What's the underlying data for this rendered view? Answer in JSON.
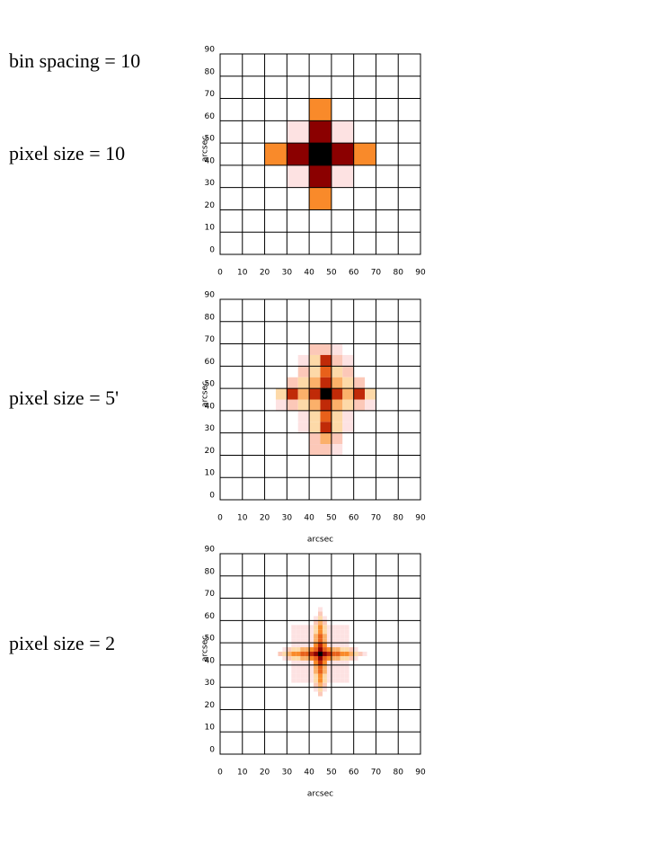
{
  "labels": [
    "bin spacing = 10",
    "pixel size = 10",
    "pixel size = 5'",
    "pixel size = 2"
  ],
  "colormap": [
    "#ffffff",
    "#fde2e2",
    "#fcc8b8",
    "#fdd9a8",
    "#fbb06a",
    "#f98a2a",
    "#e8601a",
    "#c02a08",
    "#8b0000",
    "#000000"
  ],
  "chart_data": [
    {
      "type": "heatmap",
      "ylabel": "arcsec",
      "x": [
        20,
        30,
        40,
        50,
        60
      ],
      "y": [
        60,
        50,
        40,
        30,
        20
      ],
      "values": [
        [
          0,
          0,
          5,
          0,
          0
        ],
        [
          0,
          1,
          8,
          1,
          0
        ],
        [
          5,
          8,
          9,
          8,
          5
        ],
        [
          0,
          1,
          8,
          1,
          0
        ],
        [
          0,
          0,
          5,
          0,
          0
        ]
      ],
      "xlim": [
        0,
        90
      ],
      "ylim": [
        0,
        90
      ],
      "xticks": [
        0,
        10,
        20,
        30,
        40,
        50,
        60,
        70,
        80,
        90
      ],
      "yticks": [
        0,
        10,
        20,
        30,
        40,
        50,
        60,
        70,
        80,
        90
      ],
      "grid": true
    },
    {
      "type": "heatmap",
      "ylabel": "arcsec",
      "xlabel": "arcsec",
      "x": [
        25,
        30,
        35,
        40,
        45,
        50,
        55,
        60,
        65
      ],
      "y": [
        65,
        60,
        55,
        50,
        45,
        40,
        35,
        30,
        25,
        20
      ],
      "values": [
        [
          0,
          0,
          0,
          2,
          2,
          1,
          0,
          0,
          0
        ],
        [
          0,
          0,
          1,
          3,
          7,
          2,
          1,
          0,
          0
        ],
        [
          0,
          0,
          2,
          3,
          6,
          3,
          2,
          0,
          0
        ],
        [
          0,
          2,
          3,
          4,
          7,
          4,
          3,
          2,
          0
        ],
        [
          3,
          7,
          4,
          7,
          9,
          7,
          4,
          7,
          3
        ],
        [
          1,
          2,
          3,
          4,
          7,
          4,
          3,
          2,
          1
        ],
        [
          0,
          0,
          1,
          3,
          6,
          3,
          1,
          0,
          0
        ],
        [
          0,
          0,
          1,
          3,
          7,
          3,
          1,
          0,
          0
        ],
        [
          0,
          0,
          0,
          2,
          4,
          2,
          0,
          0,
          0
        ],
        [
          0,
          0,
          0,
          2,
          2,
          1,
          0,
          0,
          0
        ]
      ],
      "xlim": [
        0,
        90
      ],
      "ylim": [
        0,
        90
      ],
      "xticks": [
        0,
        10,
        20,
        30,
        40,
        50,
        60,
        70,
        80,
        90
      ],
      "yticks": [
        0,
        10,
        20,
        30,
        40,
        50,
        60,
        70,
        80,
        90
      ],
      "grid": true
    },
    {
      "type": "heatmap",
      "ylabel": "arcsec",
      "xlabel": "arcsec",
      "x": [
        26,
        28,
        30,
        32,
        34,
        36,
        38,
        40,
        42,
        44,
        46,
        48,
        50,
        52,
        54,
        56,
        58,
        60,
        62,
        64
      ],
      "y": [
        64,
        62,
        60,
        58,
        56,
        54,
        52,
        50,
        48,
        46,
        44,
        42,
        40,
        38,
        36,
        34,
        32,
        30,
        28,
        26
      ],
      "values": [
        [
          0,
          0,
          0,
          0,
          0,
          0,
          0,
          0,
          0,
          1,
          0,
          0,
          0,
          0,
          0,
          0,
          0,
          0,
          0,
          0
        ],
        [
          0,
          0,
          0,
          0,
          0,
          0,
          0,
          0,
          0,
          2,
          0,
          0,
          0,
          0,
          0,
          0,
          0,
          0,
          0,
          0
        ],
        [
          0,
          0,
          0,
          0,
          0,
          0,
          0,
          0,
          1,
          3,
          1,
          0,
          0,
          0,
          0,
          0,
          0,
          0,
          0,
          0
        ],
        [
          0,
          0,
          0,
          0,
          0,
          0,
          0,
          0,
          2,
          4,
          2,
          0,
          0,
          0,
          0,
          0,
          0,
          0,
          0,
          0
        ],
        [
          0,
          0,
          0,
          1,
          1,
          1,
          1,
          1,
          3,
          5,
          3,
          1,
          1,
          1,
          1,
          1,
          0,
          0,
          0,
          0
        ],
        [
          0,
          0,
          0,
          1,
          1,
          1,
          1,
          1,
          3,
          5,
          3,
          1,
          1,
          1,
          1,
          1,
          0,
          0,
          0,
          0
        ],
        [
          0,
          0,
          0,
          1,
          1,
          1,
          1,
          1,
          4,
          6,
          4,
          1,
          1,
          1,
          1,
          1,
          0,
          0,
          0,
          0
        ],
        [
          0,
          0,
          0,
          1,
          1,
          1,
          1,
          1,
          4,
          6,
          4,
          1,
          1,
          1,
          1,
          1,
          0,
          0,
          0,
          0
        ],
        [
          0,
          0,
          0,
          1,
          1,
          1,
          1,
          1,
          5,
          7,
          5,
          1,
          1,
          1,
          1,
          1,
          0,
          0,
          0,
          0
        ],
        [
          0,
          1,
          2,
          3,
          3,
          4,
          4,
          5,
          6,
          8,
          6,
          5,
          4,
          4,
          3,
          3,
          2,
          1,
          0,
          0
        ],
        [
          2,
          3,
          4,
          5,
          5,
          6,
          6,
          7,
          8,
          9,
          8,
          7,
          6,
          6,
          5,
          5,
          4,
          3,
          2,
          1
        ],
        [
          0,
          1,
          2,
          3,
          3,
          4,
          4,
          5,
          6,
          8,
          6,
          5,
          4,
          4,
          3,
          3,
          2,
          1,
          0,
          0
        ],
        [
          0,
          0,
          0,
          1,
          1,
          1,
          1,
          1,
          5,
          7,
          5,
          1,
          1,
          1,
          1,
          1,
          0,
          0,
          0,
          0
        ],
        [
          0,
          0,
          0,
          1,
          1,
          1,
          1,
          1,
          4,
          6,
          4,
          1,
          1,
          1,
          1,
          1,
          0,
          0,
          0,
          0
        ],
        [
          0,
          0,
          0,
          1,
          1,
          1,
          1,
          1,
          4,
          6,
          4,
          1,
          1,
          1,
          1,
          1,
          0,
          0,
          0,
          0
        ],
        [
          0,
          0,
          0,
          1,
          1,
          1,
          1,
          1,
          3,
          5,
          3,
          1,
          1,
          1,
          1,
          1,
          0,
          0,
          0,
          0
        ],
        [
          0,
          0,
          0,
          1,
          1,
          1,
          1,
          1,
          3,
          5,
          3,
          1,
          1,
          1,
          1,
          1,
          0,
          0,
          0,
          0
        ],
        [
          0,
          0,
          0,
          0,
          0,
          0,
          0,
          0,
          2,
          4,
          2,
          0,
          0,
          0,
          0,
          0,
          0,
          0,
          0,
          0
        ],
        [
          0,
          0,
          0,
          0,
          0,
          0,
          0,
          0,
          1,
          3,
          1,
          0,
          0,
          0,
          0,
          0,
          0,
          0,
          0,
          0
        ],
        [
          0,
          0,
          0,
          0,
          0,
          0,
          0,
          0,
          0,
          2,
          0,
          0,
          0,
          0,
          0,
          0,
          0,
          0,
          0,
          0
        ]
      ],
      "xlim": [
        0,
        90
      ],
      "ylim": [
        0,
        90
      ],
      "xticks": [
        0,
        10,
        20,
        30,
        40,
        50,
        60,
        70,
        80,
        90
      ],
      "yticks": [
        0,
        10,
        20,
        30,
        40,
        50,
        60,
        70,
        80,
        90
      ],
      "grid": true
    }
  ]
}
